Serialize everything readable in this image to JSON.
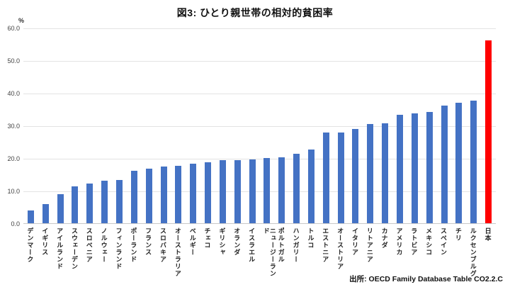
{
  "page": {
    "title": "図3: ひとり親世帯の相対的貧困率",
    "unit_label": "%",
    "source": "出所: OECD Family Database Table CO2.2.C"
  },
  "chart_data": {
    "type": "bar",
    "title": "図3: ひとり親世帯の相対的貧困率",
    "ylabel": "%",
    "xlabel": "",
    "ylim": [
      0,
      60
    ],
    "ytick_labels": [
      "0.0",
      "10.0",
      "20.0",
      "30.0",
      "40.0",
      "50.0",
      "60.0"
    ],
    "grid": true,
    "legend": "none",
    "bar_color": "#4472c4",
    "highlight_color": "#ff0000",
    "highlight_category": "日本",
    "categories": [
      "デンマーク",
      "イギリス",
      "アイルランド",
      "スウェーデン",
      "スロベニア",
      "ノルウェー",
      "フィンランド",
      "ポーランド",
      "フランス",
      "スロバキア",
      "オーストラリア",
      "ベルギー",
      "チェコ",
      "ギリシャ",
      "オランダ",
      "イスラエル",
      "ニュージーランド",
      "ポルトガル",
      "ハンガリー",
      "トルコ",
      "エストニア",
      "オーストリア",
      "イタリア",
      "リトアニア",
      "カナダ",
      "アメリカ",
      "ラトビア",
      "メキシコ",
      "スペイン",
      "チリ",
      "ルクセンブルグ",
      "日本"
    ],
    "values": [
      4.0,
      5.8,
      8.9,
      11.2,
      12.1,
      13.0,
      13.2,
      16.0,
      16.8,
      17.5,
      17.7,
      18.2,
      18.8,
      19.3,
      19.4,
      19.6,
      20.1,
      20.3,
      21.3,
      22.7,
      27.8,
      27.9,
      29.0,
      30.4,
      30.7,
      33.3,
      33.7,
      34.2,
      36.0,
      37.0,
      37.6,
      56.0
    ],
    "source": "出所: OECD Family Database Table CO2.2.C"
  }
}
